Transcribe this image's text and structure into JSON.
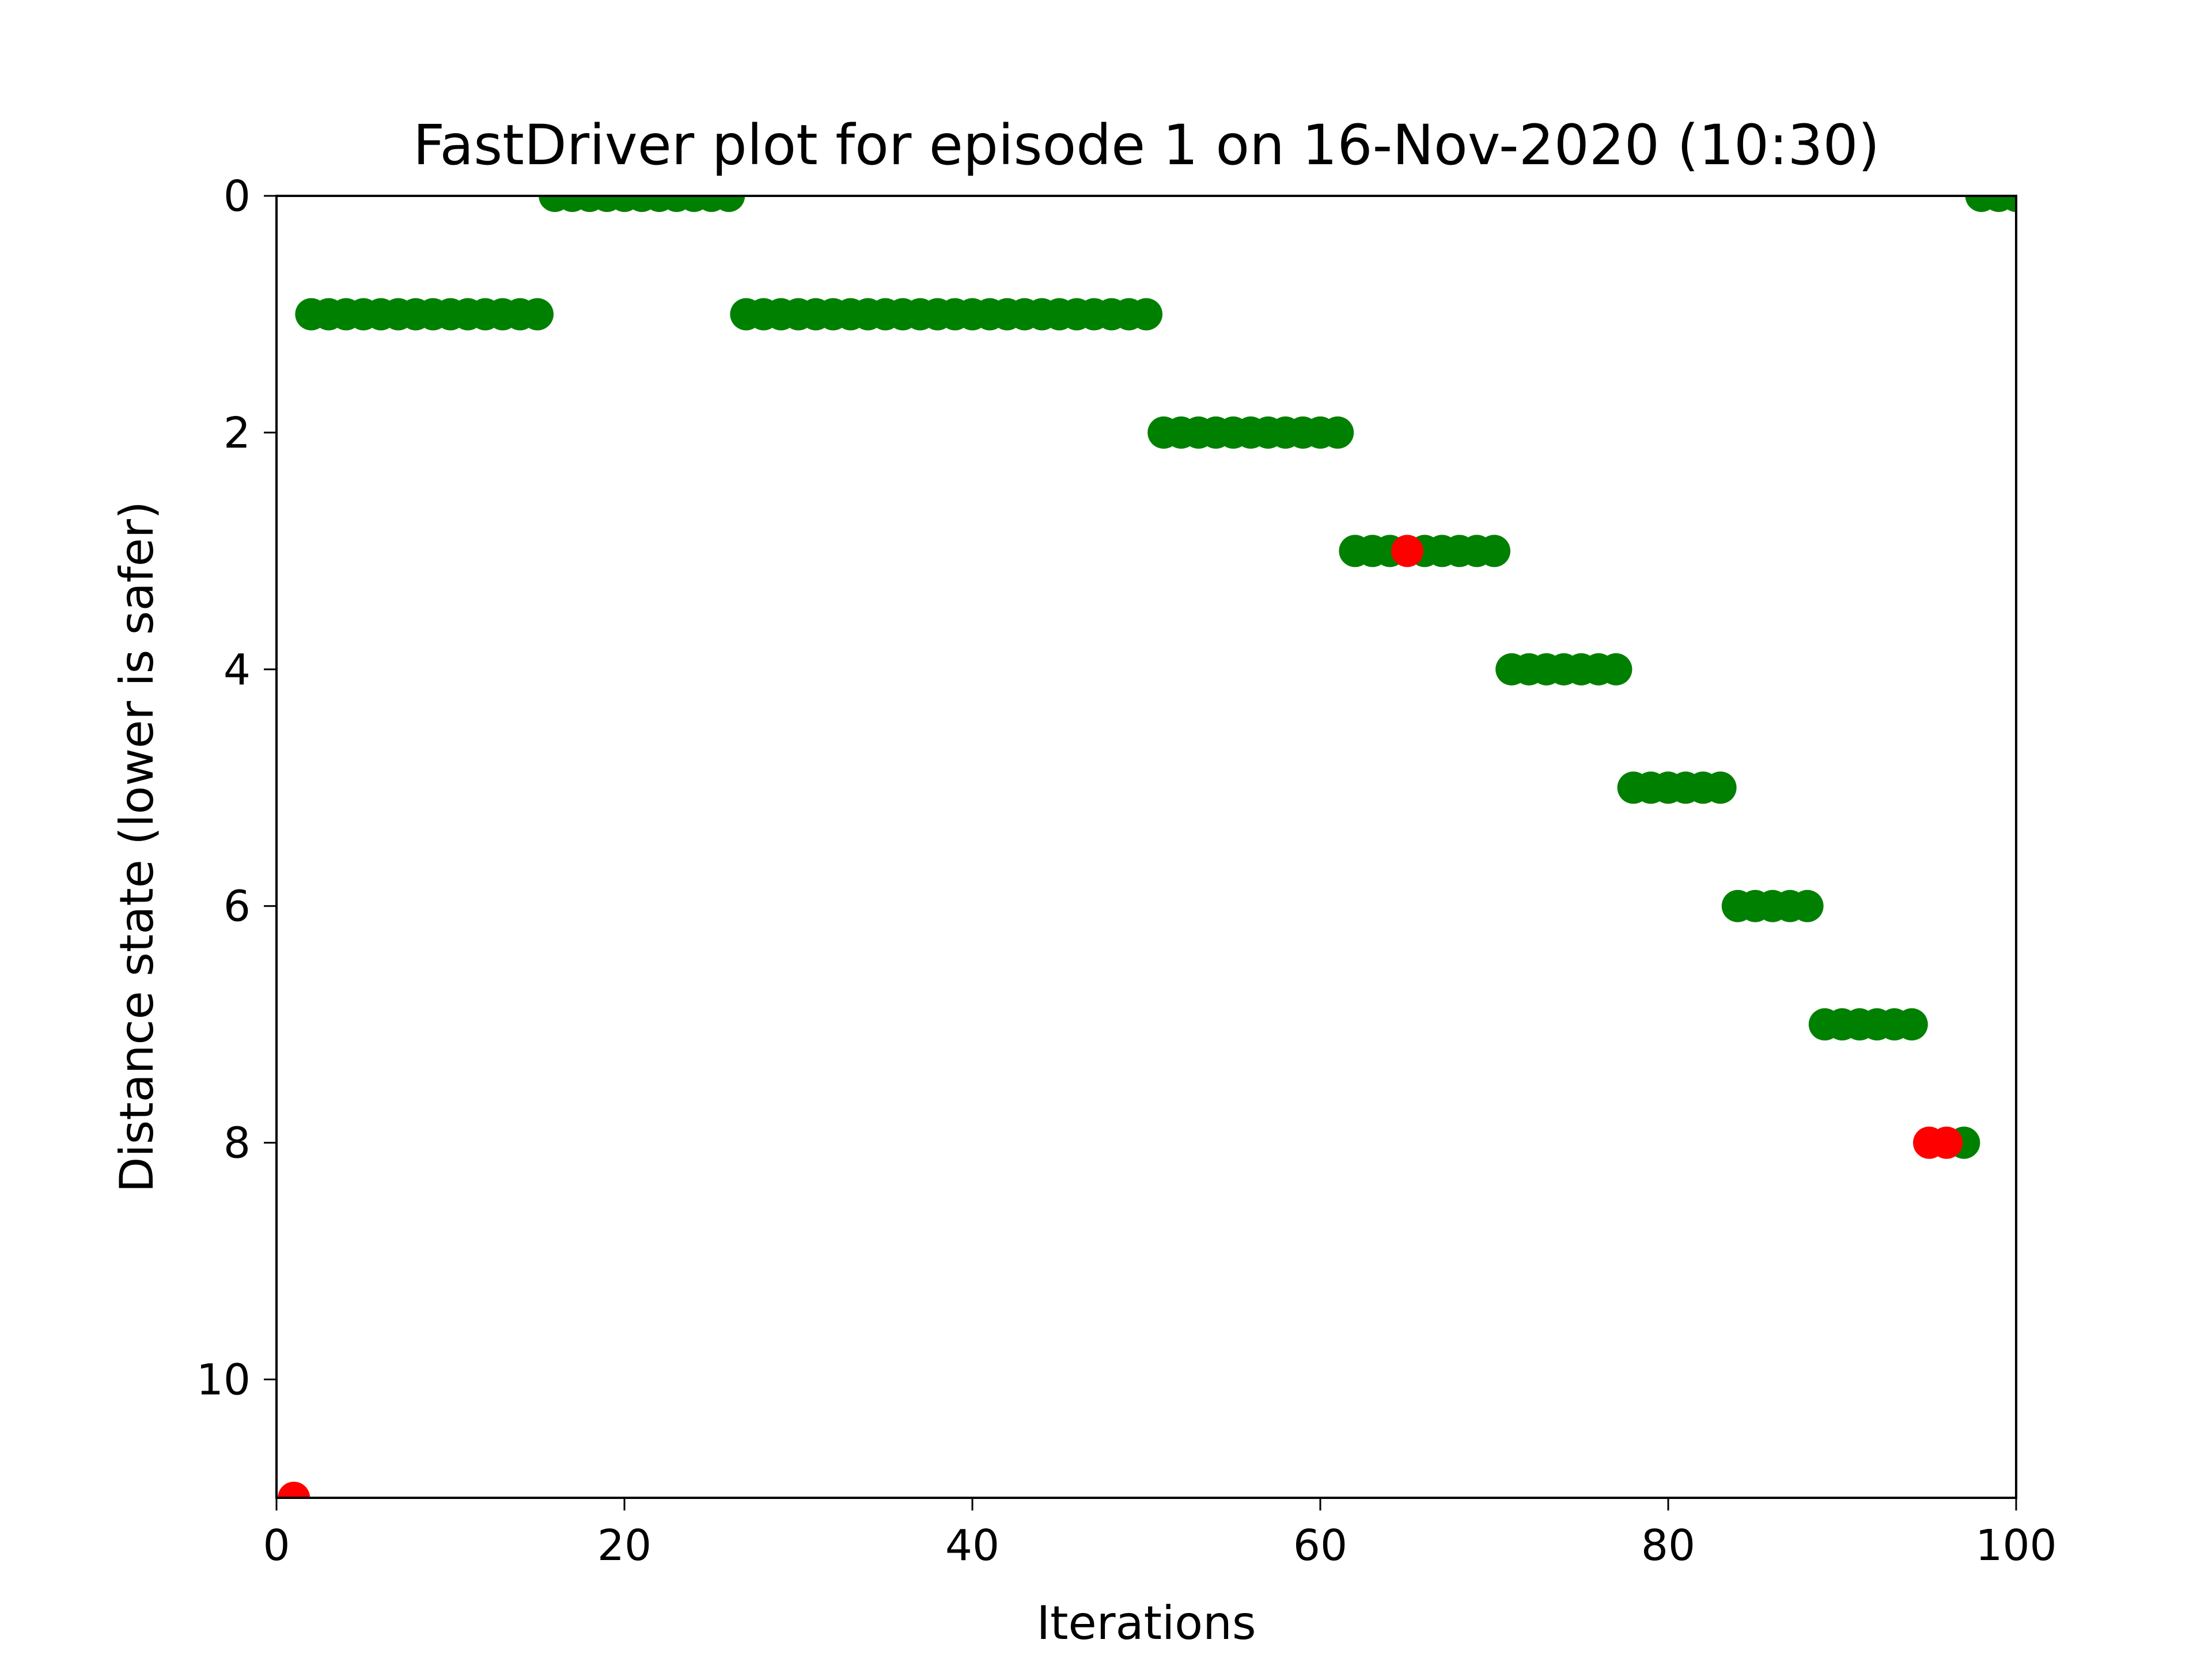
{
  "chart_data": {
    "type": "scatter",
    "title": "FastDriver plot for episode 1 on 16-Nov-2020 (10:30)",
    "xlabel": "Iterations",
    "ylabel": "Distance state (lower is safer)",
    "xlim": [
      0,
      100
    ],
    "ylim": [
      11,
      0
    ],
    "y_inverted": true,
    "grid": false,
    "legend": "none",
    "xticks": [
      0,
      20,
      40,
      60,
      80,
      100
    ],
    "yticks": [
      0,
      2,
      4,
      6,
      8,
      10
    ],
    "colors": {
      "safe": "#008000",
      "unsafe": "#ff0000"
    },
    "series": [
      {
        "color_key": "safe",
        "points": [
          [
            2,
            1
          ],
          [
            3,
            1
          ],
          [
            4,
            1
          ],
          [
            5,
            1
          ],
          [
            6,
            1
          ],
          [
            7,
            1
          ],
          [
            8,
            1
          ],
          [
            9,
            1
          ],
          [
            10,
            1
          ],
          [
            11,
            1
          ],
          [
            12,
            1
          ],
          [
            13,
            1
          ],
          [
            14,
            1
          ],
          [
            15,
            1
          ],
          [
            16,
            0
          ],
          [
            17,
            0
          ],
          [
            18,
            0
          ],
          [
            19,
            0
          ],
          [
            20,
            0
          ],
          [
            21,
            0
          ],
          [
            22,
            0
          ],
          [
            23,
            0
          ],
          [
            24,
            0
          ],
          [
            25,
            0
          ],
          [
            26,
            0
          ],
          [
            27,
            1
          ],
          [
            28,
            1
          ],
          [
            29,
            1
          ],
          [
            30,
            1
          ],
          [
            31,
            1
          ],
          [
            32,
            1
          ],
          [
            33,
            1
          ],
          [
            34,
            1
          ],
          [
            35,
            1
          ],
          [
            36,
            1
          ],
          [
            37,
            1
          ],
          [
            38,
            1
          ],
          [
            39,
            1
          ],
          [
            40,
            1
          ],
          [
            41,
            1
          ],
          [
            42,
            1
          ],
          [
            43,
            1
          ],
          [
            44,
            1
          ],
          [
            45,
            1
          ],
          [
            46,
            1
          ],
          [
            47,
            1
          ],
          [
            48,
            1
          ],
          [
            49,
            1
          ],
          [
            50,
            1
          ],
          [
            51,
            2
          ],
          [
            52,
            2
          ],
          [
            53,
            2
          ],
          [
            54,
            2
          ],
          [
            55,
            2
          ],
          [
            56,
            2
          ],
          [
            57,
            2
          ],
          [
            58,
            2
          ],
          [
            59,
            2
          ],
          [
            60,
            2
          ],
          [
            61,
            2
          ],
          [
            62,
            3
          ],
          [
            63,
            3
          ],
          [
            64,
            3
          ],
          [
            66,
            3
          ],
          [
            67,
            3
          ],
          [
            68,
            3
          ],
          [
            69,
            3
          ],
          [
            70,
            3
          ],
          [
            71,
            4
          ],
          [
            72,
            4
          ],
          [
            73,
            4
          ],
          [
            74,
            4
          ],
          [
            75,
            4
          ],
          [
            76,
            4
          ],
          [
            77,
            4
          ],
          [
            78,
            5
          ],
          [
            79,
            5
          ],
          [
            80,
            5
          ],
          [
            81,
            5
          ],
          [
            82,
            5
          ],
          [
            83,
            5
          ],
          [
            84,
            6
          ],
          [
            85,
            6
          ],
          [
            86,
            6
          ],
          [
            87,
            6
          ],
          [
            88,
            6
          ],
          [
            89,
            7
          ],
          [
            90,
            7
          ],
          [
            91,
            7
          ],
          [
            92,
            7
          ],
          [
            93,
            7
          ],
          [
            94,
            7
          ],
          [
            97,
            8
          ],
          [
            98,
            0
          ],
          [
            99,
            0
          ],
          [
            100,
            0
          ]
        ]
      },
      {
        "color_key": "unsafe",
        "points": [
          [
            1,
            11
          ],
          [
            65,
            3
          ],
          [
            95,
            8
          ],
          [
            96,
            8
          ]
        ]
      }
    ]
  }
}
